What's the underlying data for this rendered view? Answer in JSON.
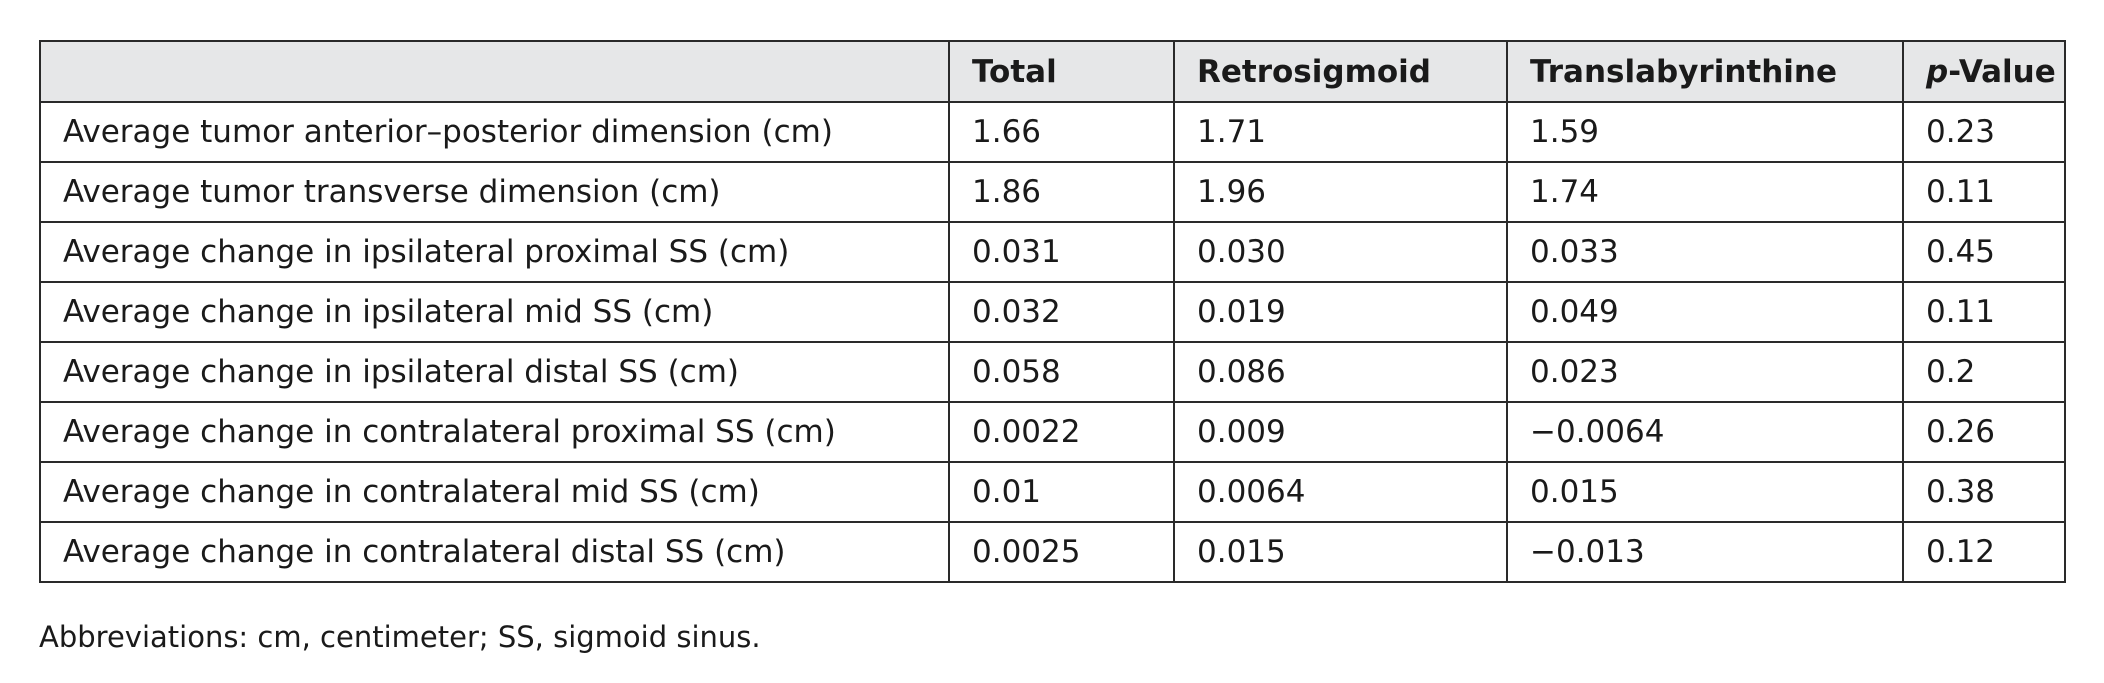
{
  "table": {
    "headers": [
      "",
      "Total",
      "Retrosigmoid",
      "Translabyrinthine",
      "p-Value"
    ],
    "pvalue_header": {
      "italic_part": "p",
      "rest": "-Value"
    },
    "rows": [
      [
        "Average tumor anterior–posterior dimension (cm)",
        "1.66",
        "1.71",
        "1.59",
        "0.23"
      ],
      [
        "Average tumor transverse dimension (cm)",
        "1.86",
        "1.96",
        "1.74",
        "0.11"
      ],
      [
        "Average change in ipsilateral proximal SS (cm)",
        "0.031",
        "0.030",
        "0.033",
        "0.45"
      ],
      [
        "Average change in ipsilateral mid SS (cm)",
        "0.032",
        "0.019",
        "0.049",
        "0.11"
      ],
      [
        "Average change in ipsilateral distal SS (cm)",
        "0.058",
        "0.086",
        "0.023",
        "0.2"
      ],
      [
        "Average change in contralateral proximal SS (cm)",
        "0.0022",
        "0.009",
        "−0.0064",
        "0.26"
      ],
      [
        "Average change in contralateral mid SS (cm)",
        "0.01",
        "0.0064",
        "0.015",
        "0.38"
      ],
      [
        "Average change in contralateral distal SS (cm)",
        "0.0025",
        "0.015",
        "−0.013",
        "0.12"
      ]
    ],
    "header_background": "#e6e7e8"
  },
  "footnote": "Abbreviations: cm, centimeter; SS, sigmoid sinus."
}
